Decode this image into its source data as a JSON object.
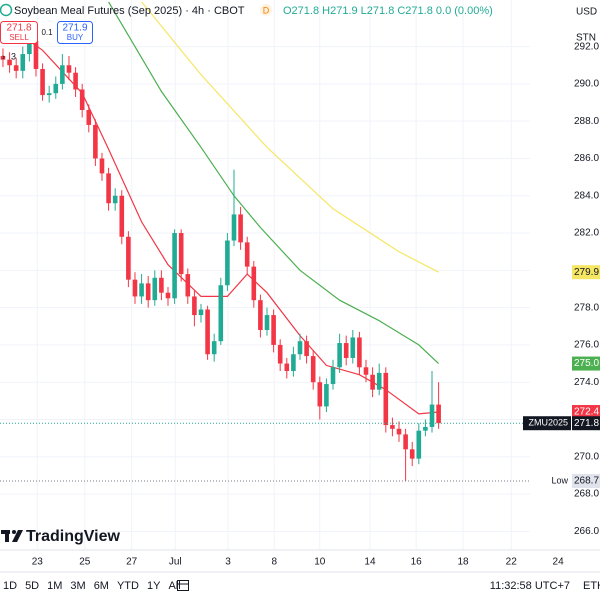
{
  "ui": {
    "symbol_title": "Soybean Meal Futures (Sep 2025) · 4h · CBOT",
    "status": "D",
    "ohlc": "O271.8 H271.9 L271.8 C271.8 0.0 (0.00%)",
    "sell_price": "271.8",
    "sell": "SELL",
    "spread": "0.1",
    "buy_price": "271.9",
    "buy": "BUY",
    "indicators": "3",
    "currency": "USD",
    "unit": "STN",
    "logo": "TradingView",
    "ranges": [
      "1D",
      "5D",
      "1M",
      "3M",
      "6M",
      "YTD",
      "1Y",
      "All"
    ],
    "clock": "11:32:58 UTC+7",
    "session": "ETH"
  },
  "chart_data": {
    "type": "candlestick",
    "title": "Soybean Meal Futures (Sep 2025) · 4h · CBOT",
    "up_color": "#22ab94",
    "down_color": "#f23645",
    "x": [
      0,
      1,
      2,
      3,
      4,
      5,
      6,
      7,
      8,
      9,
      10,
      11,
      12,
      13,
      14,
      15,
      16,
      17,
      18,
      19,
      20,
      21,
      22,
      23,
      24,
      25,
      26,
      27,
      28,
      29,
      30,
      31,
      32,
      33,
      34,
      35,
      36,
      37,
      38,
      39,
      40,
      41,
      42,
      43,
      44,
      45,
      46,
      47,
      48,
      49,
      50,
      51,
      52,
      53,
      54,
      55,
      56,
      57,
      58,
      59,
      60,
      61,
      62,
      63,
      64,
      65,
      66
    ],
    "open": [
      291.5,
      291.3,
      291.0,
      290.7,
      291.6,
      292.3,
      290.8,
      289.4,
      289.5,
      290.0,
      291.0,
      290.6,
      289.7,
      288.6,
      287.8,
      286.0,
      285.2,
      283.6,
      284.0,
      281.8,
      279.5,
      278.6,
      279.3,
      278.4,
      279.6,
      278.8,
      278.5,
      282.0,
      279.8,
      278.6,
      277.6,
      277.9,
      275.5,
      276.2,
      279.2,
      281.6,
      283.0,
      281.5,
      280.2,
      278.4,
      276.8,
      277.6,
      276.0,
      275.0,
      274.6,
      275.5,
      276.2,
      275.4,
      274.0,
      272.7,
      273.9,
      274.8,
      276.1,
      275.3,
      276.4,
      274.8,
      274.4,
      273.6,
      274.5,
      271.7,
      271.5,
      271.2,
      270.4,
      269.9,
      271.4,
      271.6,
      272.8
    ],
    "high": [
      291.9,
      291.7,
      291.4,
      292.0,
      292.9,
      292.6,
      291.1,
      289.9,
      290.4,
      291.6,
      291.5,
      290.9,
      290.0,
      288.9,
      288.1,
      286.3,
      285.5,
      284.4,
      284.3,
      282.1,
      279.9,
      279.8,
      279.7,
      280.0,
      280.0,
      279.1,
      282.2,
      282.2,
      280.1,
      278.9,
      278.2,
      278.1,
      276.6,
      279.6,
      282.0,
      285.4,
      283.4,
      281.8,
      280.5,
      278.7,
      278.0,
      277.9,
      276.3,
      275.3,
      275.9,
      276.6,
      276.5,
      275.7,
      274.3,
      274.2,
      275.2,
      276.6,
      276.5,
      276.8,
      276.7,
      275.2,
      274.8,
      275.0,
      274.8,
      272.1,
      271.9,
      271.5,
      270.8,
      271.8,
      272.0,
      274.6,
      274.0
    ],
    "low": [
      290.9,
      290.6,
      290.3,
      290.3,
      291.2,
      290.4,
      289.1,
      289.0,
      289.2,
      289.7,
      290.2,
      289.3,
      288.2,
      287.4,
      285.6,
      284.8,
      283.2,
      283.2,
      281.4,
      279.1,
      278.2,
      278.2,
      278.0,
      278.1,
      278.4,
      278.1,
      278.2,
      279.4,
      278.2,
      277.0,
      277.2,
      275.2,
      275.1,
      276.0,
      278.9,
      281.3,
      281.1,
      279.8,
      278.0,
      276.4,
      276.5,
      275.6,
      274.6,
      274.2,
      274.3,
      275.2,
      275.0,
      273.6,
      272.0,
      272.4,
      273.6,
      274.5,
      274.9,
      275.0,
      274.4,
      274.0,
      273.2,
      273.3,
      271.3,
      271.1,
      270.8,
      268.7,
      269.5,
      269.6,
      271.1,
      271.3,
      271.5
    ],
    "close": [
      291.3,
      291.0,
      290.7,
      291.6,
      292.3,
      290.8,
      289.4,
      289.5,
      290.0,
      291.0,
      290.6,
      289.7,
      288.6,
      287.8,
      286.0,
      285.2,
      283.6,
      284.0,
      281.8,
      279.5,
      278.6,
      279.3,
      278.4,
      279.6,
      278.8,
      278.5,
      282.0,
      279.8,
      278.6,
      277.6,
      277.9,
      275.5,
      276.2,
      279.2,
      281.6,
      283.0,
      281.5,
      280.2,
      278.4,
      276.8,
      277.6,
      276.0,
      275.0,
      274.6,
      275.5,
      276.2,
      275.4,
      274.0,
      272.7,
      273.9,
      274.8,
      276.1,
      275.3,
      276.4,
      274.8,
      274.4,
      273.6,
      274.5,
      271.7,
      271.5,
      271.2,
      270.4,
      269.9,
      271.4,
      271.6,
      272.8,
      271.8
    ],
    "series": [
      {
        "color": "#f23645",
        "x": [
          0,
          6,
          12,
          16,
          21,
          25,
          30,
          34,
          37,
          40,
          45,
          49,
          54,
          58,
          63,
          66
        ],
        "values": [
          293.3,
          291.8,
          289.5,
          286.5,
          282.6,
          280.3,
          278.6,
          278.6,
          279.8,
          278.8,
          276.5,
          274.9,
          274.4,
          273.6,
          272.3,
          272.4
        ]
      },
      {
        "color": "#4caf50",
        "x": [
          16,
          24,
          30,
          35,
          39,
          45,
          51,
          57,
          63,
          66
        ],
        "values": [
          294.4,
          289.6,
          286.6,
          284.0,
          282.3,
          280.0,
          278.4,
          277.3,
          276.0,
          275.0
        ]
      },
      {
        "color": "#f5e663",
        "x": [
          21,
          30,
          40,
          50,
          60,
          66
        ],
        "values": [
          294.4,
          290.5,
          286.6,
          283.3,
          281.0,
          279.9
        ]
      }
    ],
    "markers": [
      {
        "value": 279.9,
        "color": "#f5e663"
      },
      {
        "value": 275,
        "label": "275.0",
        "color": "#4caf50"
      },
      {
        "value": 272.4,
        "color": "#f23645"
      },
      {
        "value": 271.8,
        "name": "ZMU2025",
        "color": "#131722"
      },
      {
        "value": 268.7,
        "name": "Low",
        "color": "#e0e3eb"
      }
    ],
    "ylim": [
      265,
      294.5
    ],
    "yticks": [
      {
        "value": 266,
        "label": "266.0"
      },
      {
        "value": 268,
        "label": "268.0"
      },
      {
        "value": 270,
        "label": "270.0"
      },
      {
        "value": 272,
        "label": "272.0"
      },
      {
        "value": 274,
        "label": "274.0"
      },
      {
        "value": 276,
        "label": "276.0"
      },
      {
        "value": 278,
        "label": "278.0"
      },
      {
        "value": 280,
        "label": "280.0"
      },
      {
        "value": 282,
        "label": "282.0"
      },
      {
        "value": 284,
        "label": "284.0"
      },
      {
        "value": 286,
        "label": "286.0"
      },
      {
        "value": 288,
        "label": "288.0"
      },
      {
        "value": 290,
        "label": "290.0"
      },
      {
        "value": 292,
        "label": "292.0"
      }
    ],
    "xlim": [
      -0.45,
      90.45
    ],
    "xticks": [
      {
        "value": 5.2,
        "label": "23"
      },
      {
        "value": 12.4,
        "label": "25"
      },
      {
        "value": 19.5,
        "label": "27"
      },
      {
        "value": 26.1,
        "label": "Jul"
      },
      {
        "value": 34.1,
        "label": "3"
      },
      {
        "value": 41.1,
        "label": "8"
      },
      {
        "value": 48,
        "label": "10"
      },
      {
        "value": 55.6,
        "label": "14"
      },
      {
        "value": 62.6,
        "label": "16"
      },
      {
        "value": 69.7,
        "label": "18"
      },
      {
        "value": 77,
        "label": "22"
      },
      {
        "value": 84.1,
        "label": "24"
      }
    ],
    "grid": true
  }
}
